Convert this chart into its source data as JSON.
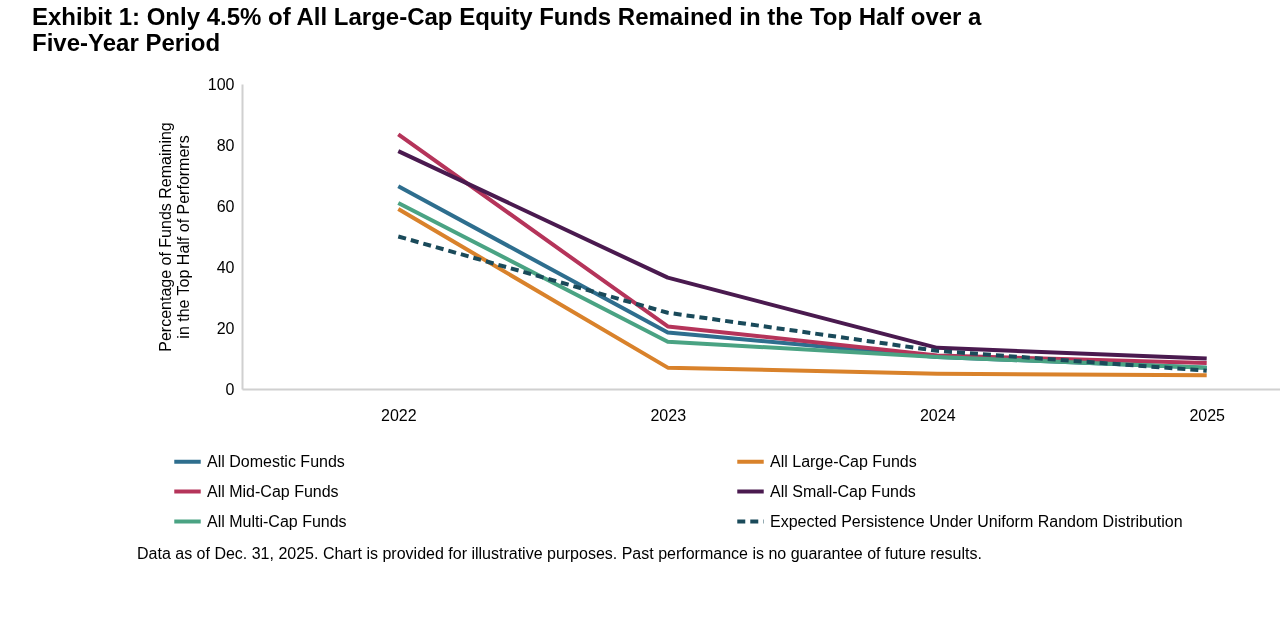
{
  "chart_data": {
    "type": "line",
    "title": "Exhibit 1: Only 4.5% of All Large-Cap Equity Funds Remained in the Top Half over a Five-Year Period",
    "ylabel": "Percentage of Funds Remaining in the Top Half of Performers",
    "categories": [
      "2022",
      "2023",
      "2024",
      "2025"
    ],
    "series": [
      {
        "name": "All Domestic Funds",
        "color": "#2e6e8e",
        "values": [
          66.5,
          18.5,
          10.5,
          7
        ]
      },
      {
        "name": "All Large-Cap Funds",
        "color": "#d9822b",
        "values": [
          59,
          7,
          5,
          4.5
        ]
      },
      {
        "name": "All Mid-Cap Funds",
        "color": "#b5345a",
        "values": [
          83.5,
          20.5,
          11,
          8.5
        ]
      },
      {
        "name": "All Small-Cap Funds",
        "color": "#4a1a4f",
        "values": [
          78,
          36.5,
          13.5,
          10
        ]
      },
      {
        "name": "All Multi-Cap Funds",
        "color": "#4aa383",
        "values": [
          61,
          15.5,
          10.5,
          7
        ]
      },
      {
        "name": "Expected Persistence Under Uniform Random Distribution",
        "color": "#1a4a5a",
        "line_style": "dashed",
        "values": [
          50,
          25,
          12.5,
          6
        ]
      }
    ],
    "ylim": [
      0,
      100
    ],
    "yticks": [
      0,
      20,
      40,
      60,
      80,
      100
    ],
    "grid": false,
    "legend": "bottom",
    "annotations": [
      "Data as of Dec. 31, 2025.  Chart is provided for illustrative purposes.  Past performance is no guarantee of future results."
    ]
  }
}
